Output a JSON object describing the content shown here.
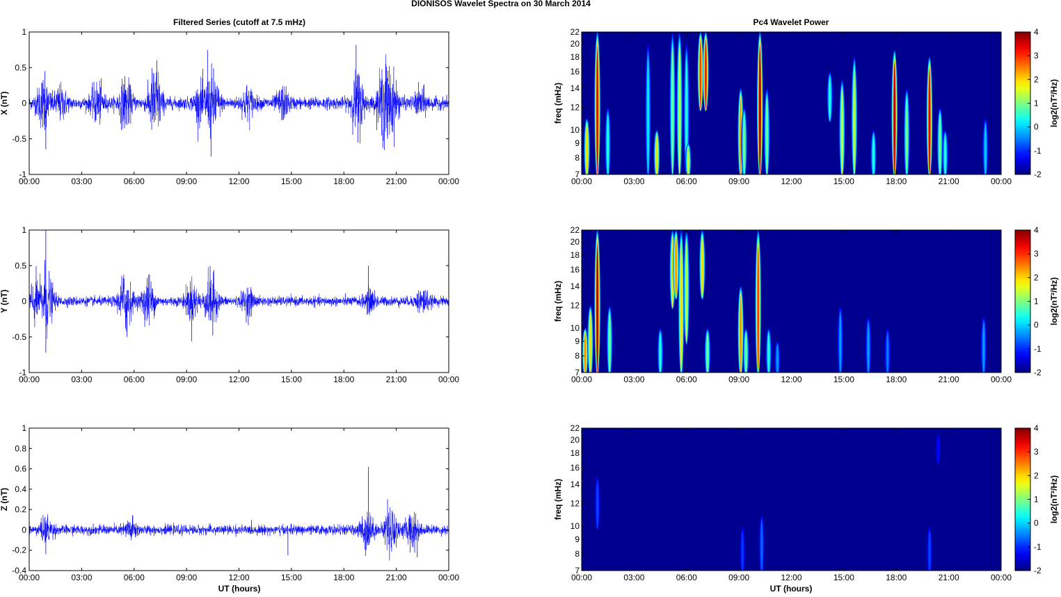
{
  "figure": {
    "title": "DIONISOS Wavelet Spectra on 30 March     2014",
    "left_title": "Filtered Series (cutoff at 7.5 mHz)",
    "right_title": "Pc4 Wavelet Power",
    "xlabel": "UT (hours)"
  },
  "colors": {
    "trace": "#0000ff",
    "spec_bg": "#00008f"
  },
  "chart_data": [
    {
      "type": "line",
      "name": "X (nT)",
      "ylabel": "X (nT)",
      "xlim": [
        0,
        24
      ],
      "ylim": [
        -1,
        1
      ],
      "yticks": [
        "-1",
        "-0.5",
        "0",
        "0.5",
        "1"
      ],
      "xticks": [
        "00:00",
        "03:00",
        "06:00",
        "09:00",
        "12:00",
        "15:00",
        "18:00",
        "21:00",
        "00:00"
      ],
      "noise_base": 0.09,
      "envelope": [
        [
          0.8,
          0.35
        ],
        [
          1.8,
          0.22
        ],
        [
          3.9,
          0.28
        ],
        [
          5.5,
          0.35
        ],
        [
          7.2,
          0.55
        ],
        [
          9.8,
          0.25
        ],
        [
          10.5,
          0.45
        ],
        [
          12.5,
          0.22
        ],
        [
          14.5,
          0.2
        ],
        [
          18.8,
          0.45
        ],
        [
          20.3,
          0.55
        ],
        [
          20.8,
          0.35
        ],
        [
          22.4,
          0.18
        ]
      ],
      "spikes": [
        [
          0.9,
          0.45
        ],
        [
          0.95,
          -0.65
        ],
        [
          7.3,
          0.6
        ],
        [
          10.4,
          -0.75
        ],
        [
          10.2,
          0.75
        ],
        [
          18.7,
          0.82
        ],
        [
          18.8,
          -0.55
        ],
        [
          20.4,
          0.55
        ],
        [
          20.5,
          -0.5
        ]
      ]
    },
    {
      "type": "line",
      "name": "Y (nT)",
      "ylabel": "Y (nT)",
      "xlim": [
        0,
        24
      ],
      "ylim": [
        -1,
        1
      ],
      "yticks": [
        "-1",
        "-0.5",
        "0",
        "0.5",
        "1"
      ],
      "xticks": [
        "00:00",
        "03:00",
        "06:00",
        "09:00",
        "12:00",
        "15:00",
        "18:00",
        "21:00",
        "00:00"
      ],
      "noise_base": 0.07,
      "envelope": [
        [
          0.3,
          0.3
        ],
        [
          1,
          0.45
        ],
        [
          5.5,
          0.45
        ],
        [
          6.8,
          0.35
        ],
        [
          9.3,
          0.3
        ],
        [
          10.4,
          0.4
        ],
        [
          12.5,
          0.18
        ],
        [
          19.5,
          0.15
        ],
        [
          22.5,
          0.18
        ]
      ],
      "spikes": [
        [
          0.95,
          1.0
        ],
        [
          0.95,
          -0.72
        ],
        [
          0.9,
          0.58
        ],
        [
          5.6,
          -0.5
        ],
        [
          10.5,
          -0.48
        ],
        [
          19.4,
          0.5
        ]
      ]
    },
    {
      "type": "line",
      "name": "Z (nT)",
      "ylabel": "Z (nT)",
      "xlim": [
        0,
        24
      ],
      "ylim": [
        -0.4,
        1
      ],
      "yticks": [
        "-0.4",
        "-0.2",
        "0",
        "0.2",
        "0.4",
        "0.6",
        "0.8",
        "1"
      ],
      "xticks": [
        "00:00",
        "03:00",
        "06:00",
        "09:00",
        "12:00",
        "15:00",
        "18:00",
        "21:00",
        "00:00"
      ],
      "noise_base": 0.05,
      "envelope": [
        [
          1,
          0.12
        ],
        [
          5.8,
          0.1
        ],
        [
          19.3,
          0.2
        ],
        [
          20.7,
          0.25
        ],
        [
          21.9,
          0.18
        ]
      ],
      "spikes": [
        [
          0.95,
          -0.24
        ],
        [
          14.8,
          -0.25
        ],
        [
          19.4,
          0.62
        ],
        [
          20.5,
          0.3
        ],
        [
          22.2,
          -0.27
        ]
      ]
    },
    {
      "type": "heatmap",
      "name": "Pc4 Wavelet Power X",
      "ylabel": "freq (mHz)",
      "cbar_label": "log2(nT²/Hz)",
      "xlim": [
        0,
        24
      ],
      "ylim": [
        7,
        22
      ],
      "clim": [
        -2,
        4
      ],
      "yticks": [
        "7",
        "8",
        "9",
        "10",
        "12",
        "14",
        "16",
        "18",
        "20",
        "22"
      ],
      "cticks": [
        "-2",
        "-1",
        "0",
        "1",
        "2",
        "3",
        "4"
      ],
      "xticks": [
        "00:00",
        "03:00",
        "06:00",
        "09:00",
        "12:00",
        "15:00",
        "18:00",
        "21:00",
        "00:00"
      ],
      "blobs": [
        [
          0.3,
          7,
          11,
          2.0
        ],
        [
          0.9,
          7,
          22,
          3.5
        ],
        [
          1.5,
          7,
          12,
          0.5
        ],
        [
          3.8,
          7,
          20,
          0.2
        ],
        [
          4.3,
          7,
          10,
          2.0
        ],
        [
          5.2,
          7,
          22,
          1.0
        ],
        [
          5.6,
          7,
          22,
          1.5
        ],
        [
          6,
          7,
          20,
          0.5
        ],
        [
          6.1,
          7,
          9,
          1.5
        ],
        [
          6.8,
          12,
          22,
          3.0
        ],
        [
          7.1,
          12,
          22,
          3.3
        ],
        [
          9.1,
          7,
          14,
          2.5
        ],
        [
          9.3,
          7,
          12,
          1.0
        ],
        [
          10.2,
          7,
          22,
          3.8
        ],
        [
          10.6,
          7,
          14,
          1.0
        ],
        [
          14.2,
          11,
          16,
          0.5
        ],
        [
          14.9,
          7,
          15,
          1.5
        ],
        [
          15.6,
          7,
          18,
          1.5
        ],
        [
          16.7,
          7,
          10,
          0.5
        ],
        [
          17.9,
          7,
          19,
          3.8
        ],
        [
          18.6,
          7,
          14,
          1.0
        ],
        [
          19.9,
          7,
          18,
          3.5
        ],
        [
          20.5,
          7,
          12,
          1.0
        ],
        [
          20.8,
          7,
          10,
          0.5
        ],
        [
          23.1,
          7,
          11,
          0.0
        ]
      ]
    },
    {
      "type": "heatmap",
      "name": "Pc4 Wavelet Power Y",
      "ylabel": "freq (mHz)",
      "cbar_label": "log2(nT²/Hz)",
      "xlim": [
        0,
        24
      ],
      "ylim": [
        7,
        22
      ],
      "clim": [
        -2,
        4
      ],
      "yticks": [
        "7",
        "8",
        "9",
        "10",
        "12",
        "14",
        "16",
        "18",
        "20",
        "22"
      ],
      "cticks": [
        "-2",
        "-1",
        "0",
        "1",
        "2",
        "3",
        "4"
      ],
      "xticks": [
        "00:00",
        "03:00",
        "06:00",
        "09:00",
        "12:00",
        "15:00",
        "18:00",
        "21:00",
        "00:00"
      ],
      "blobs": [
        [
          0.2,
          7,
          10,
          2.5
        ],
        [
          0.5,
          7,
          12,
          2.0
        ],
        [
          0.9,
          7,
          22,
          3.8
        ],
        [
          1.6,
          7,
          12,
          1.0
        ],
        [
          4.5,
          7,
          10,
          0.5
        ],
        [
          5.2,
          12,
          22,
          2.0
        ],
        [
          5.4,
          13,
          22,
          2.5
        ],
        [
          5.7,
          7,
          22,
          2.0
        ],
        [
          6,
          9,
          22,
          1.5
        ],
        [
          6.9,
          13,
          22,
          2.0
        ],
        [
          7.2,
          7,
          10,
          1.0
        ],
        [
          9.1,
          7,
          14,
          2.5
        ],
        [
          9.4,
          7,
          10,
          1.0
        ],
        [
          10.1,
          7,
          22,
          3.0
        ],
        [
          10.7,
          7,
          10,
          0.5
        ],
        [
          11.2,
          7,
          9,
          -0.3
        ],
        [
          14.8,
          7,
          12,
          -0.3
        ],
        [
          16.4,
          7,
          11,
          -0.3
        ],
        [
          17.5,
          7,
          10,
          -0.5
        ],
        [
          23,
          7,
          11,
          -0.3
        ]
      ]
    },
    {
      "type": "heatmap",
      "name": "Pc4 Wavelet Power Z",
      "ylabel": "freq (mHz)",
      "cbar_label": "log2(nT²/Hz)",
      "xlim": [
        0,
        24
      ],
      "ylim": [
        7,
        22
      ],
      "clim": [
        -2,
        4
      ],
      "yticks": [
        "7",
        "8",
        "9",
        "10",
        "12",
        "14",
        "16",
        "18",
        "20",
        "22"
      ],
      "cticks": [
        "-2",
        "-1",
        "0",
        "1",
        "2",
        "3",
        "4"
      ],
      "xticks": [
        "00:00",
        "03:00",
        "06:00",
        "09:00",
        "12:00",
        "15:00",
        "18:00",
        "21:00",
        "00:00"
      ],
      "blobs": [
        [
          0.9,
          10,
          15,
          -0.8
        ],
        [
          9.2,
          7,
          10,
          -0.9
        ],
        [
          10.3,
          7,
          11,
          -0.6
        ],
        [
          19.9,
          7,
          10,
          -0.8
        ],
        [
          20.4,
          17,
          21,
          -1.2
        ]
      ]
    }
  ]
}
